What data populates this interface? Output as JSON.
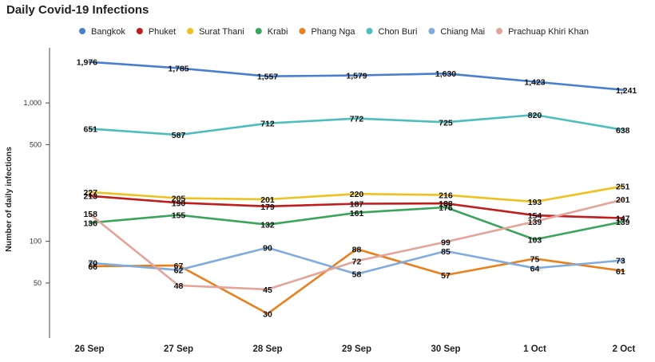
{
  "chart_data": {
    "type": "line",
    "title": "Daily Covid-19 Infections",
    "ylabel": "Number of daily infections",
    "xlabel": "",
    "yscale": "log",
    "ylim": [
      20,
      2500
    ],
    "yticks": [
      50,
      100,
      500,
      1000
    ],
    "ytick_labels": [
      "50",
      "100",
      "500",
      "1,000"
    ],
    "grid": false,
    "legend_position": "top",
    "categories": [
      "26 Sep",
      "27 Sep",
      "28 Sep",
      "29 Sep",
      "30 Sep",
      "1 Oct",
      "2 Oct"
    ],
    "series": [
      {
        "name": "Bangkok",
        "color": "#4a7fd0",
        "values": [
          1976,
          1785,
          1557,
          1579,
          1630,
          1423,
          1241
        ],
        "labels": [
          "1,976",
          "1,785",
          "1,557",
          "1,579",
          "1,630",
          "1,423",
          "1,241"
        ]
      },
      {
        "name": "Phuket",
        "color": "#c21d1d",
        "values": [
          213,
          190,
          179,
          187,
          188,
          154,
          147
        ],
        "labels": [
          "213",
          "190",
          "179",
          "187",
          "188",
          "154",
          "147"
        ]
      },
      {
        "name": "Surat Thani",
        "color": "#eec21e",
        "values": [
          227,
          205,
          201,
          220,
          216,
          193,
          251
        ],
        "labels": [
          "227",
          "205",
          "201",
          "220",
          "216",
          "193",
          "251"
        ]
      },
      {
        "name": "Krabi",
        "color": "#3aa55a",
        "values": [
          136,
          155,
          132,
          161,
          176,
          103,
          139
        ],
        "labels": [
          "136",
          "155",
          "132",
          "161",
          "176",
          "103",
          "139"
        ]
      },
      {
        "name": "Phang Nga",
        "color": "#e8801e",
        "values": [
          66,
          67,
          30,
          88,
          57,
          75,
          61
        ],
        "labels": [
          "66",
          "67",
          "30",
          "88",
          "57",
          "75",
          "61"
        ]
      },
      {
        "name": "Chon Buri",
        "color": "#4dbdbd",
        "values": [
          651,
          587,
          712,
          772,
          725,
          820,
          638
        ],
        "labels": [
          "651",
          "587",
          "712",
          "772",
          "725",
          "820",
          "638"
        ]
      },
      {
        "name": "Chiang Mai",
        "color": "#7fabdf",
        "values": [
          70,
          62,
          90,
          58,
          85,
          64,
          73
        ],
        "labels": [
          "70",
          "62",
          "90",
          "58",
          "85",
          "64",
          "73"
        ]
      },
      {
        "name": "Prachuap Khiri Khan",
        "color": "#e3a49a",
        "values": [
          158,
          48,
          45,
          72,
          99,
          139,
          201
        ],
        "labels": [
          "158",
          "48",
          "45",
          "72",
          "99",
          "139",
          "201"
        ]
      }
    ]
  }
}
